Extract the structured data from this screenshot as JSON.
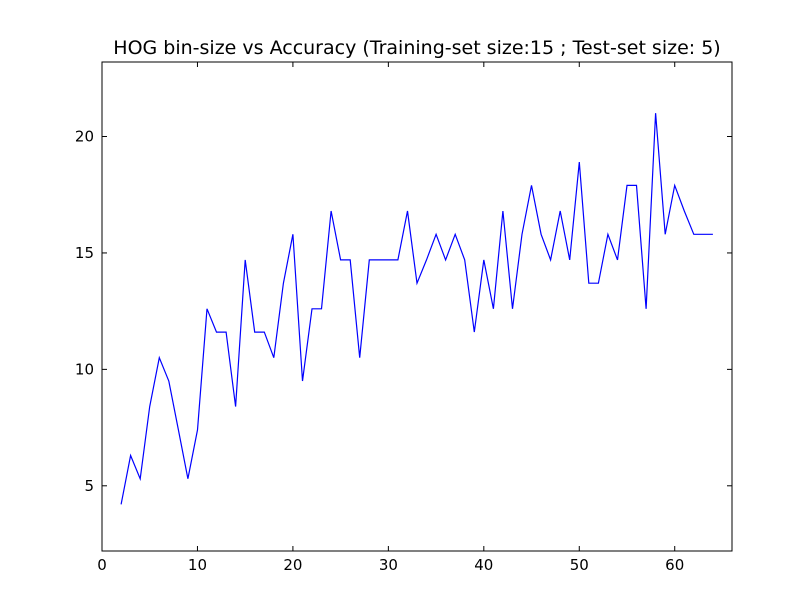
{
  "chart_data": {
    "type": "line",
    "title": "HOG bin-size vs Accuracy (Training-set size:15 ; Test-set size: 5)",
    "xlabel": "",
    "ylabel": "",
    "xlim": [
      0,
      66
    ],
    "ylim": [
      2.2,
      23.2
    ],
    "x_ticks": [
      0,
      10,
      20,
      30,
      40,
      50,
      60
    ],
    "y_ticks": [
      5,
      10,
      15,
      20
    ],
    "grid": false,
    "series": [
      {
        "color": "#0000ff",
        "x": [
          2,
          3,
          4,
          5,
          6,
          7,
          8,
          9,
          10,
          11,
          12,
          13,
          14,
          15,
          16,
          17,
          18,
          19,
          20,
          21,
          22,
          23,
          24,
          25,
          26,
          27,
          28,
          29,
          30,
          31,
          32,
          33,
          34,
          35,
          36,
          37,
          38,
          39,
          40,
          41,
          42,
          43,
          44,
          45,
          46,
          47,
          48,
          49,
          50,
          51,
          52,
          53,
          54,
          55,
          56,
          57,
          58,
          59,
          60,
          61,
          62,
          63,
          64
        ],
        "y": [
          4.2,
          6.3,
          5.3,
          8.4,
          10.5,
          9.5,
          7.4,
          5.3,
          7.4,
          12.6,
          11.6,
          11.6,
          8.4,
          14.7,
          11.6,
          11.6,
          10.5,
          13.7,
          15.8,
          9.5,
          12.6,
          12.6,
          16.8,
          14.7,
          14.7,
          10.5,
          14.7,
          14.7,
          14.7,
          14.7,
          16.8,
          13.7,
          14.7,
          15.8,
          14.7,
          15.8,
          14.7,
          11.6,
          14.7,
          12.6,
          16.8,
          12.6,
          15.8,
          17.9,
          15.8,
          14.7,
          16.8,
          14.7,
          18.9,
          13.7,
          13.7,
          15.8,
          14.7,
          17.9,
          17.9,
          12.6,
          21.0,
          15.8,
          17.9,
          16.8,
          15.8,
          15.8,
          15.8
        ]
      }
    ]
  }
}
